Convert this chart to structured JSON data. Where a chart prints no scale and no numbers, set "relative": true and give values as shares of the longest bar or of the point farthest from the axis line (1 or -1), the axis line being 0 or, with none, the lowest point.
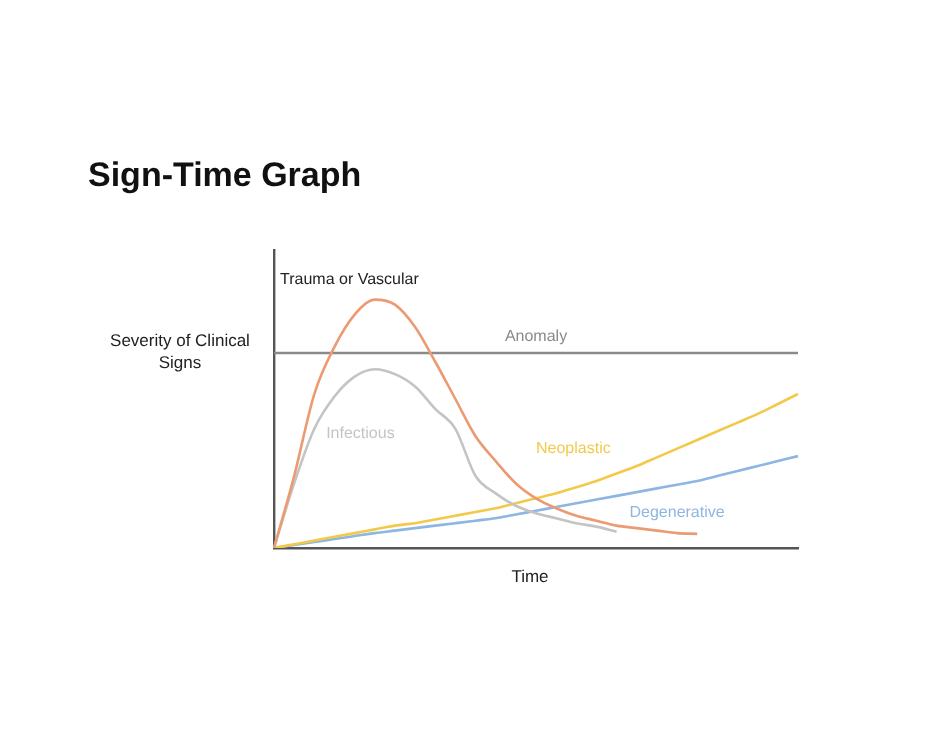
{
  "chart_data": {
    "type": "line",
    "title": "Sign-Time Graph",
    "xlabel": "Time",
    "ylabel": "Severity of Clinical Signs",
    "relative": true,
    "legend": false,
    "grid": false,
    "marker": "none",
    "categories": [
      null,
      null,
      null,
      null,
      null,
      null,
      null,
      null,
      null,
      null,
      null,
      null,
      null,
      null,
      null,
      null,
      null,
      null,
      null,
      null,
      null,
      null,
      null,
      null,
      null,
      null,
      null
    ],
    "series": [
      {
        "name": "Trauma or Vascular",
        "color": "#ec9a72",
        "values": [
          0,
          0.29,
          0.62,
          0.81,
          0.94,
          1,
          0.98,
          0.89,
          0.75,
          0.6,
          0.45,
          0.35,
          0.26,
          0.2,
          0.16,
          0.13,
          0.11,
          0.09,
          0.08,
          0.07,
          0.06,
          0.057,
          null,
          null,
          null,
          null,
          null
        ]
      },
      {
        "name": "Infectious",
        "color": "#c4c4c4",
        "values": [
          0,
          0.26,
          0.48,
          0.61,
          0.69,
          0.72,
          0.7,
          0.65,
          0.56,
          0.48,
          0.29,
          0.22,
          0.17,
          0.14,
          0.12,
          0.1,
          0.086,
          0.065,
          null,
          null,
          null,
          null,
          null,
          null,
          null,
          null,
          null
        ]
      },
      {
        "name": "Neoplastic",
        "color": "#f3c94a",
        "values": [
          0,
          0.015,
          0.03,
          0.045,
          0.06,
          0.075,
          0.09,
          0.1,
          0.115,
          0.13,
          0.145,
          0.16,
          0.18,
          0.2,
          0.22,
          0.245,
          0.27,
          0.3,
          0.33,
          0.365,
          0.4,
          0.435,
          0.47,
          0.505,
          0.54,
          0.58,
          0.62
        ]
      },
      {
        "name": "Degenerative",
        "color": "#8db6e2",
        "values": [
          0,
          0.012,
          0.024,
          0.036,
          0.048,
          0.06,
          0.07,
          0.08,
          0.09,
          0.1,
          0.11,
          0.12,
          0.135,
          0.15,
          0.165,
          0.18,
          0.195,
          0.21,
          0.225,
          0.24,
          0.255,
          0.27,
          0.29,
          0.31,
          0.33,
          0.35,
          0.37
        ]
      },
      {
        "name": "Anomaly",
        "color": "#8a8a8a",
        "values": [
          0.785,
          0.785,
          0.785,
          0.785,
          0.785,
          0.785,
          0.785,
          0.785,
          0.785,
          0.785,
          0.785,
          0.785,
          0.785,
          0.785,
          0.785,
          0.785,
          0.785,
          0.785,
          0.785,
          0.785,
          0.785,
          0.785,
          0.785,
          0.785,
          0.785,
          0.785,
          0.785
        ]
      }
    ]
  }
}
